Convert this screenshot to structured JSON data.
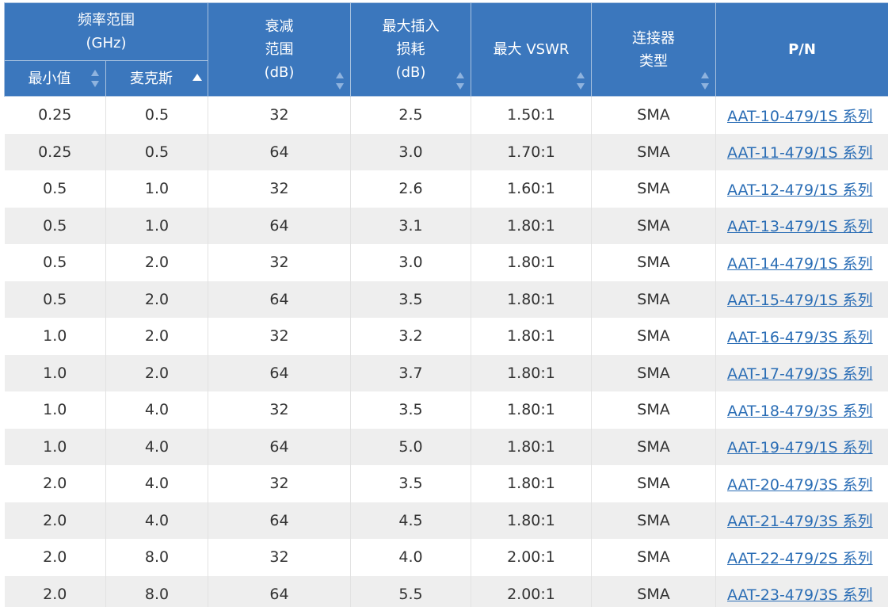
{
  "headers": {
    "freq_range": "频率范围",
    "freq_unit": "(GHz)",
    "min": "最小值",
    "max": "麦克斯",
    "atten_range_1": "衰减",
    "atten_range_2": "范围",
    "atten_unit": "(dB)",
    "insertion_1": "最大插入",
    "insertion_2": "损耗",
    "insertion_unit": "(dB)",
    "vswr": "最大 VSWR",
    "connector_1": "连接器",
    "connector_2": "类型",
    "pn": "P/N"
  },
  "colors": {
    "header_bg": "#3b77bd",
    "stripe": "#eeeeee",
    "link": "#2a6db5"
  },
  "rows": [
    {
      "min": "0.25",
      "max": "0.5",
      "atten": "32",
      "loss": "2.5",
      "vswr": "1.50:1",
      "conn": "SMA",
      "pn": "AAT-10-479/1S 系列"
    },
    {
      "min": "0.25",
      "max": "0.5",
      "atten": "64",
      "loss": "3.0",
      "vswr": "1.70:1",
      "conn": "SMA",
      "pn": "AAT-11-479/1S 系列"
    },
    {
      "min": "0.5",
      "max": "1.0",
      "atten": "32",
      "loss": "2.6",
      "vswr": "1.60:1",
      "conn": "SMA",
      "pn": "AAT-12-479/1S 系列"
    },
    {
      "min": "0.5",
      "max": "1.0",
      "atten": "64",
      "loss": "3.1",
      "vswr": "1.80:1",
      "conn": "SMA",
      "pn": "AAT-13-479/1S 系列"
    },
    {
      "min": "0.5",
      "max": "2.0",
      "atten": "32",
      "loss": "3.0",
      "vswr": "1.80:1",
      "conn": "SMA",
      "pn": "AAT-14-479/1S 系列"
    },
    {
      "min": "0.5",
      "max": "2.0",
      "atten": "64",
      "loss": "3.5",
      "vswr": "1.80:1",
      "conn": "SMA",
      "pn": "AAT-15-479/1S 系列"
    },
    {
      "min": "1.0",
      "max": "2.0",
      "atten": "32",
      "loss": "3.2",
      "vswr": "1.80:1",
      "conn": "SMA",
      "pn": "AAT-16-479/3S 系列"
    },
    {
      "min": "1.0",
      "max": "2.0",
      "atten": "64",
      "loss": "3.7",
      "vswr": "1.80:1",
      "conn": "SMA",
      "pn": "AAT-17-479/3S 系列"
    },
    {
      "min": "1.0",
      "max": "4.0",
      "atten": "32",
      "loss": "3.5",
      "vswr": "1.80:1",
      "conn": "SMA",
      "pn": "AAT-18-479/3S 系列"
    },
    {
      "min": "1.0",
      "max": "4.0",
      "atten": "64",
      "loss": "5.0",
      "vswr": "1.80:1",
      "conn": "SMA",
      "pn": "AAT-19-479/1S 系列"
    },
    {
      "min": "2.0",
      "max": "4.0",
      "atten": "32",
      "loss": "3.5",
      "vswr": "1.80:1",
      "conn": "SMA",
      "pn": "AAT-20-479/3S 系列"
    },
    {
      "min": "2.0",
      "max": "4.0",
      "atten": "64",
      "loss": "4.5",
      "vswr": "1.80:1",
      "conn": "SMA",
      "pn": "AAT-21-479/3S 系列"
    },
    {
      "min": "2.0",
      "max": "8.0",
      "atten": "32",
      "loss": "4.0",
      "vswr": "2.00:1",
      "conn": "SMA",
      "pn": "AAT-22-479/2S 系列"
    },
    {
      "min": "2.0",
      "max": "8.0",
      "atten": "64",
      "loss": "5.5",
      "vswr": "2.00:1",
      "conn": "SMA",
      "pn": "AAT-23-479/3S 系列"
    }
  ]
}
